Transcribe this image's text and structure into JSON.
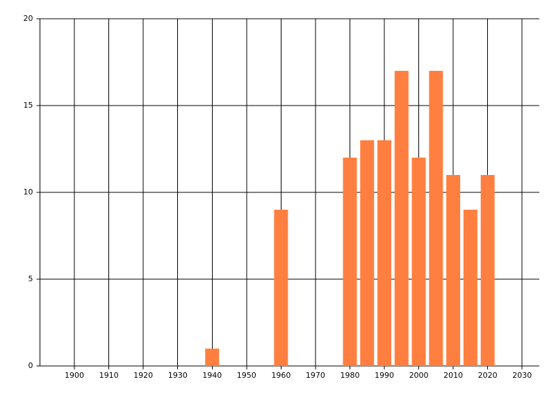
{
  "chart_data": {
    "type": "bar",
    "x": [
      1940,
      1960,
      1980,
      1985,
      1990,
      1995,
      2000,
      2005,
      2010,
      2015,
      2020
    ],
    "values": [
      1,
      9,
      12,
      13,
      13,
      17,
      12,
      17,
      11,
      9,
      11
    ],
    "color": "#ff7f40",
    "xlim": [
      1890,
      2035
    ],
    "xticks": [
      1900,
      1910,
      1920,
      1930,
      1940,
      1950,
      1960,
      1970,
      1980,
      1990,
      2000,
      2010,
      2020,
      2030
    ],
    "ylim": [
      0,
      20
    ],
    "yticks": [
      0,
      5,
      10,
      15,
      20
    ],
    "grid": true
  }
}
